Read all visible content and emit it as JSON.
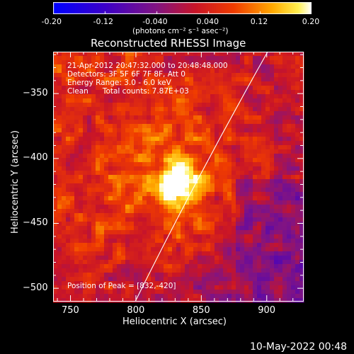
{
  "chart_data": {
    "type": "heatmap",
    "title": "Reconstructed RHESSI Image",
    "xlabel": "Heliocentric X (arcsec)",
    "ylabel": "Heliocentric Y (arcsec)",
    "xlim": [
      737,
      928
    ],
    "ylim": [
      -510,
      -318
    ],
    "xticks": [
      750,
      800,
      850,
      900
    ],
    "yticks": [
      -350,
      -400,
      -450,
      -500
    ],
    "colorbar": {
      "range": [
        -0.2,
        0.2
      ],
      "ticks": [
        "-0.20",
        "-0.12",
        "-0.040",
        "0.040",
        "0.12",
        "0.20"
      ],
      "unit_text": "(photons cm⁻² s⁻¹ asec⁻²)"
    },
    "peak": {
      "x": 832,
      "y": -420
    },
    "limb_line": [
      [
        800,
        -512
      ],
      [
        901,
        -318
      ]
    ],
    "annotations": [
      "21-Apr-2012 20:47:32.000 to 20:48:48.000",
      "Detectors: 3F 5F 6F 7F 8F, Att 0",
      "Energy Range: 3.0 - 6.0 keV",
      "Clean      Total counts: 7.87E+03"
    ],
    "peak_label": "Position of Peak = [832,-420]"
  },
  "footer_timestamp": "10-May-2022 00:48"
}
